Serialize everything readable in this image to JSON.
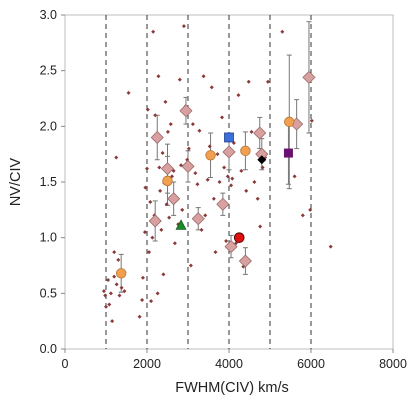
{
  "chart_data": {
    "type": "scatter",
    "xlabel": "FWHM(CIV)  km/s",
    "ylabel": "NV/CIV",
    "xlim": [
      0,
      8000
    ],
    "ylim": [
      0.0,
      3.0
    ],
    "x_ticks": [
      "0",
      "2000",
      "4000",
      "6000",
      "8000"
    ],
    "y_ticks": [
      "0.0",
      "0.5",
      "1.0",
      "1.5",
      "2.0",
      "2.5",
      "3.0"
    ],
    "grid": false,
    "bin_boundaries": [
      1000,
      2000,
      3000,
      4000,
      5000,
      6000
    ],
    "colors": {
      "small_points": "#8b3a3a",
      "binned_median": "#d9a0a0",
      "binned_median_edge": "#9a6a6a",
      "orange_median": "#f0a050",
      "blue_square": "#3a6fd8",
      "purple_square": "#6a1070",
      "green_triangle": "#1a8a2a",
      "red_circle": "#e01010",
      "black_diamond": "#000000",
      "error_bars": "#777777"
    },
    "series": [
      {
        "marker": "small-diamond",
        "points": [
          [
            950,
            0.52
          ],
          [
            980,
            0.48
          ],
          [
            1000,
            0.38
          ],
          [
            1050,
            0.62
          ],
          [
            1080,
            0.4
          ],
          [
            1120,
            0.5
          ],
          [
            1200,
            0.65
          ],
          [
            1260,
            0.58
          ],
          [
            1300,
            0.8
          ],
          [
            1330,
            0.48
          ],
          [
            1380,
            0.55
          ],
          [
            1450,
            0.52
          ],
          [
            1550,
            2.3
          ],
          [
            1150,
            0.25
          ],
          [
            1200,
            0.87
          ],
          [
            1250,
            1.72
          ],
          [
            1820,
            0.29
          ],
          [
            1880,
            0.44
          ],
          [
            1900,
            0.64
          ],
          [
            1950,
            1.05
          ],
          [
            1960,
            1.45
          ],
          [
            2000,
            1.62
          ],
          [
            2020,
            2.15
          ],
          [
            2050,
            0.87
          ],
          [
            2080,
            1.32
          ],
          [
            2100,
            0.43
          ],
          [
            2130,
            1.0
          ],
          [
            2150,
            2.85
          ],
          [
            2180,
            1.2
          ],
          [
            2200,
            2.1
          ],
          [
            2230,
            1.87
          ],
          [
            2260,
            0.5
          ],
          [
            2280,
            2.45
          ],
          [
            2300,
            1.63
          ],
          [
            2320,
            1.42
          ],
          [
            2350,
            1.07
          ],
          [
            2380,
            1.76
          ],
          [
            2400,
            0.67
          ],
          [
            2420,
            1.49
          ],
          [
            2450,
            2.22
          ],
          [
            2480,
            1.3
          ],
          [
            2510,
            1.95
          ],
          [
            2540,
            1.18
          ],
          [
            2580,
            2.02
          ],
          [
            2610,
            1.55
          ],
          [
            2650,
            1.6
          ],
          [
            2680,
            0.95
          ],
          [
            2720,
            1.36
          ],
          [
            2760,
            1.12
          ],
          [
            2800,
            2.42
          ],
          [
            2830,
            1.65
          ],
          [
            2860,
            1.25
          ],
          [
            2900,
            2.9
          ],
          [
            2940,
            2.18
          ],
          [
            2980,
            1.7
          ],
          [
            3020,
            1.8
          ],
          [
            3070,
            0.75
          ],
          [
            3120,
            2.02
          ],
          [
            3180,
            1.58
          ],
          [
            3230,
            1.48
          ],
          [
            3280,
            1.96
          ],
          [
            3330,
            1.07
          ],
          [
            3380,
            2.45
          ],
          [
            3420,
            1.2
          ],
          [
            3480,
            1.52
          ],
          [
            3530,
            1.82
          ],
          [
            3580,
            2.35
          ],
          [
            3630,
            1.35
          ],
          [
            3670,
            0.87
          ],
          [
            3720,
            1.75
          ],
          [
            3770,
            1.5
          ],
          [
            3830,
            2.08
          ],
          [
            3880,
            1.63
          ],
          [
            3930,
            0.97
          ],
          [
            3970,
            1.55
          ],
          [
            4050,
            1.47
          ],
          [
            4080,
            1.53
          ],
          [
            4120,
            1.85
          ],
          [
            4170,
            0.95
          ],
          [
            4230,
            2.28
          ],
          [
            4300,
            1.6
          ],
          [
            4350,
            0.74
          ],
          [
            4420,
            1.42
          ],
          [
            4480,
            2.4
          ],
          [
            4550,
            1.95
          ],
          [
            4620,
            1.5
          ],
          [
            4700,
            1.35
          ],
          [
            4760,
            1.1
          ],
          [
            4820,
            1.63
          ],
          [
            4880,
            1.72
          ],
          [
            4950,
            2.4
          ],
          [
            5300,
            2.85
          ],
          [
            5450,
            1.75
          ],
          [
            5600,
            1.55
          ],
          [
            5800,
            1.2
          ],
          [
            5980,
            1.25
          ],
          [
            6020,
            2.05
          ],
          [
            6480,
            0.92
          ]
        ]
      },
      {
        "marker": "large-pink-diamond",
        "points": [
          {
            "x": 2200,
            "y": 1.15,
            "err": 0.18
          },
          {
            "x": 2250,
            "y": 1.9,
            "err": 0.2
          },
          {
            "x": 2500,
            "y": 1.62,
            "err": 0.22
          },
          {
            "x": 2650,
            "y": 1.35,
            "err": 0.15
          },
          {
            "x": 2950,
            "y": 2.14,
            "err": 0.12
          },
          {
            "x": 3000,
            "y": 1.64,
            "err": 0.14
          },
          {
            "x": 3250,
            "y": 1.17,
            "err": 0.1
          },
          {
            "x": 3850,
            "y": 1.3,
            "err": 0.1
          },
          {
            "x": 4000,
            "y": 1.77,
            "err": 0.16
          },
          {
            "x": 4050,
            "y": 0.92,
            "err": 0.1
          },
          {
            "x": 4400,
            "y": 0.79,
            "err": 0.12
          },
          {
            "x": 4750,
            "y": 1.94,
            "err": 0.14
          },
          {
            "x": 4800,
            "y": 1.75,
            "err": 0.14
          },
          {
            "x": 5650,
            "y": 2.02,
            "err": 0.22
          },
          {
            "x": 5950,
            "y": 2.44,
            "err": 0.5
          }
        ]
      },
      {
        "marker": "orange-circle",
        "points": [
          {
            "x": 1370,
            "y": 0.68,
            "err": 0.17
          },
          {
            "x": 2500,
            "y": 1.51,
            "err": 0.22
          },
          {
            "x": 3550,
            "y": 1.74,
            "err": 0.2
          },
          {
            "x": 4400,
            "y": 1.78,
            "err": 0.17
          },
          {
            "x": 5470,
            "y": 2.04,
            "err": 0.6
          }
        ]
      },
      {
        "marker": "blue-square",
        "points": [
          {
            "x": 4000,
            "y": 1.9
          }
        ]
      },
      {
        "marker": "purple-square",
        "points": [
          {
            "x": 5450,
            "y": 1.76,
            "err": 0.28
          }
        ]
      },
      {
        "marker": "green-triangle",
        "points": [
          {
            "x": 2830,
            "y": 1.11
          }
        ]
      },
      {
        "marker": "red-circle",
        "points": [
          {
            "x": 4250,
            "y": 1.0
          }
        ]
      },
      {
        "marker": "black-diamond",
        "points": [
          {
            "x": 4800,
            "y": 1.7
          }
        ]
      }
    ]
  }
}
